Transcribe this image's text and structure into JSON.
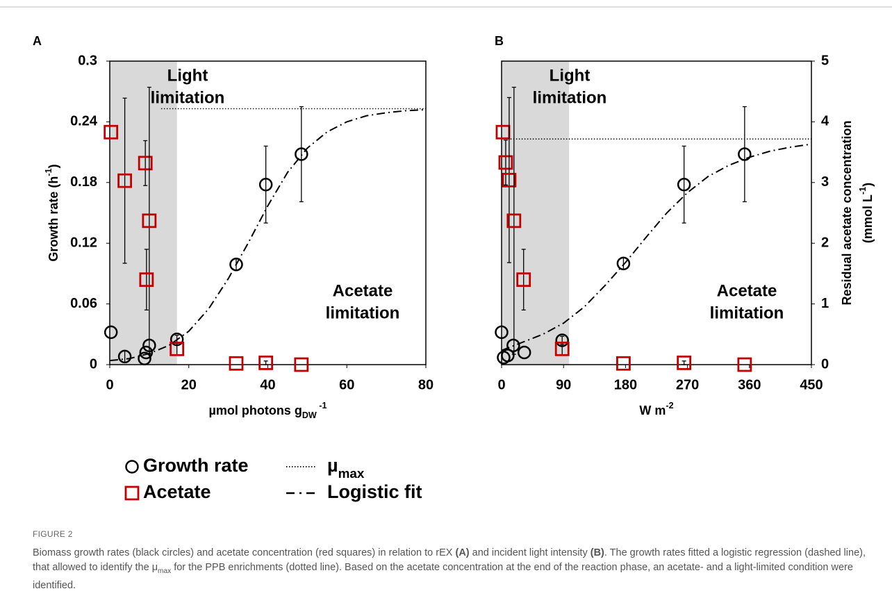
{
  "chart_data": [
    {
      "type": "scatter",
      "panel": "A",
      "xlim": [
        0,
        80
      ],
      "xticks": [
        0,
        20,
        40,
        60,
        80
      ],
      "ylim": [
        0,
        0.3
      ],
      "yticks": [
        0,
        0.06,
        0.12,
        0.18,
        0.24,
        0.3
      ],
      "y2lim": [
        0,
        5
      ],
      "x_label": [
        {
          "text": "µmol photons g"
        },
        {
          "text": "DW",
          "sub": true
        },
        {
          "text": " -1",
          "sup": true
        }
      ],
      "y_label": [
        {
          "text": "Growth rate (h"
        },
        {
          "text": "-1",
          "sup": true
        },
        {
          "text": ")"
        }
      ],
      "shaded_region": [
        0,
        17
      ],
      "annotations": [
        [
          "Light",
          "limitation"
        ],
        [
          "Acetate",
          "limitation"
        ]
      ],
      "series": [
        {
          "name": "Growth rate",
          "marker": "circle",
          "color": "#000000",
          "x": [
            0.3,
            3.8,
            8.8,
            9.2,
            10,
            17,
            32,
            39.5,
            48.5
          ],
          "values": [
            0.032,
            0.008,
            0.006,
            0.012,
            0.019,
            0.025,
            0.099,
            0.178,
            0.208
          ],
          "errors": [
            null,
            0.006,
            null,
            null,
            null,
            0.004,
            0.006,
            0.038,
            0.047
          ]
        },
        {
          "name": "Acetate",
          "marker": "square",
          "color": "#c00000",
          "axis": "y2",
          "x": [
            0.3,
            3.8,
            9,
            10,
            9.3,
            17,
            32,
            39.5,
            48.5
          ],
          "values": [
            3.83,
            3.03,
            3.32,
            2.37,
            1.4,
            0.26,
            0.02,
            0.03,
            0
          ],
          "errors": [
            null,
            1.36,
            0.37,
            2.2,
            0.5,
            0.1,
            null,
            0.03,
            null
          ]
        },
        {
          "name": [
            {
              "text": "µ"
            },
            {
              "text": "max",
              "sub": true
            }
          ],
          "line": "dotted",
          "color": "#000000",
          "x": [
            13,
            80
          ],
          "values": [
            0.253,
            0.253
          ]
        },
        {
          "name": "Logistic fit",
          "line": "dashdot",
          "color": "#000000",
          "x": [
            0,
            5,
            10,
            15,
            20,
            25,
            30,
            35,
            40,
            45,
            50,
            55,
            60,
            65,
            70,
            75,
            80
          ],
          "values": [
            0.004,
            0.006,
            0.011,
            0.019,
            0.033,
            0.055,
            0.085,
            0.12,
            0.157,
            0.19,
            0.214,
            0.23,
            0.24,
            0.246,
            0.249,
            0.251,
            0.252
          ]
        }
      ]
    },
    {
      "type": "scatter",
      "panel": "B",
      "xlim": [
        0,
        450
      ],
      "xticks": [
        0,
        90,
        180,
        270,
        360,
        450
      ],
      "ylim": [
        0,
        0.3
      ],
      "y2lim": [
        0,
        5
      ],
      "y2ticks": [
        0,
        1,
        2,
        3,
        4,
        5
      ],
      "x_label": [
        {
          "text": "W m"
        },
        {
          "text": "-2",
          "sup": true
        }
      ],
      "y2_label": [
        "Residual acetate concentration",
        [
          {
            "text": "(mmol L"
          },
          {
            "text": "-1",
            "sup": true
          },
          {
            "text": ")"
          }
        ]
      ],
      "shaded_region": [
        0,
        98
      ],
      "annotations": [
        [
          "Light",
          "limitation"
        ],
        [
          "Acetate",
          "limitation"
        ]
      ],
      "series": [
        {
          "marker": "circle",
          "color": "#000000",
          "x": [
            0,
            3,
            9,
            17,
            33,
            88,
            177,
            265,
            353
          ],
          "values": [
            0.032,
            0.007,
            0.009,
            0.019,
            0.012,
            0.024,
            0.1,
            0.178,
            0.208
          ],
          "errors": [
            null,
            null,
            null,
            null,
            null,
            0.004,
            0.006,
            0.038,
            0.047
          ]
        },
        {
          "marker": "square",
          "color": "#c00000",
          "axis": "y2",
          "x": [
            2,
            6,
            11,
            18,
            32,
            88,
            177,
            265,
            353
          ],
          "values": [
            3.83,
            3.33,
            3.04,
            2.37,
            1.4,
            0.26,
            0.02,
            0.03,
            0
          ],
          "errors": [
            null,
            0.37,
            1.36,
            2.2,
            0.5,
            0.1,
            null,
            0.03,
            null
          ]
        },
        {
          "line": "dotted",
          "color": "#000000",
          "x": [
            13,
            450
          ],
          "values": [
            0.223,
            0.223
          ]
        },
        {
          "line": "dashdot",
          "color": "#000000",
          "x": [
            0,
            30,
            60,
            90,
            120,
            150,
            180,
            210,
            240,
            270,
            300,
            330,
            360,
            390,
            420,
            450
          ],
          "values": [
            0.014,
            0.022,
            0.03,
            0.041,
            0.057,
            0.078,
            0.101,
            0.126,
            0.15,
            0.17,
            0.186,
            0.197,
            0.205,
            0.211,
            0.215,
            0.218
          ]
        }
      ]
    }
  ],
  "figure": {
    "label": "FIGURE 2",
    "caption": [
      {
        "text": "Biomass growth rates (black circles) and acetate concentration (red squares) in relation to rEX "
      },
      {
        "text": "(A)",
        "bold": true
      },
      {
        "text": " and incident light intensity "
      },
      {
        "text": "(B)",
        "bold": true
      },
      {
        "text": ". The growth rates fitted a logistic regression (dashed line), that allowed to identify the μ"
      },
      {
        "text": "max",
        "sub": true
      },
      {
        "text": " for the PPB enrichments (dotted line). Based on the acetate concentration at the end of the reaction phase, an acetate- and a light-limited condition were identified."
      }
    ]
  }
}
